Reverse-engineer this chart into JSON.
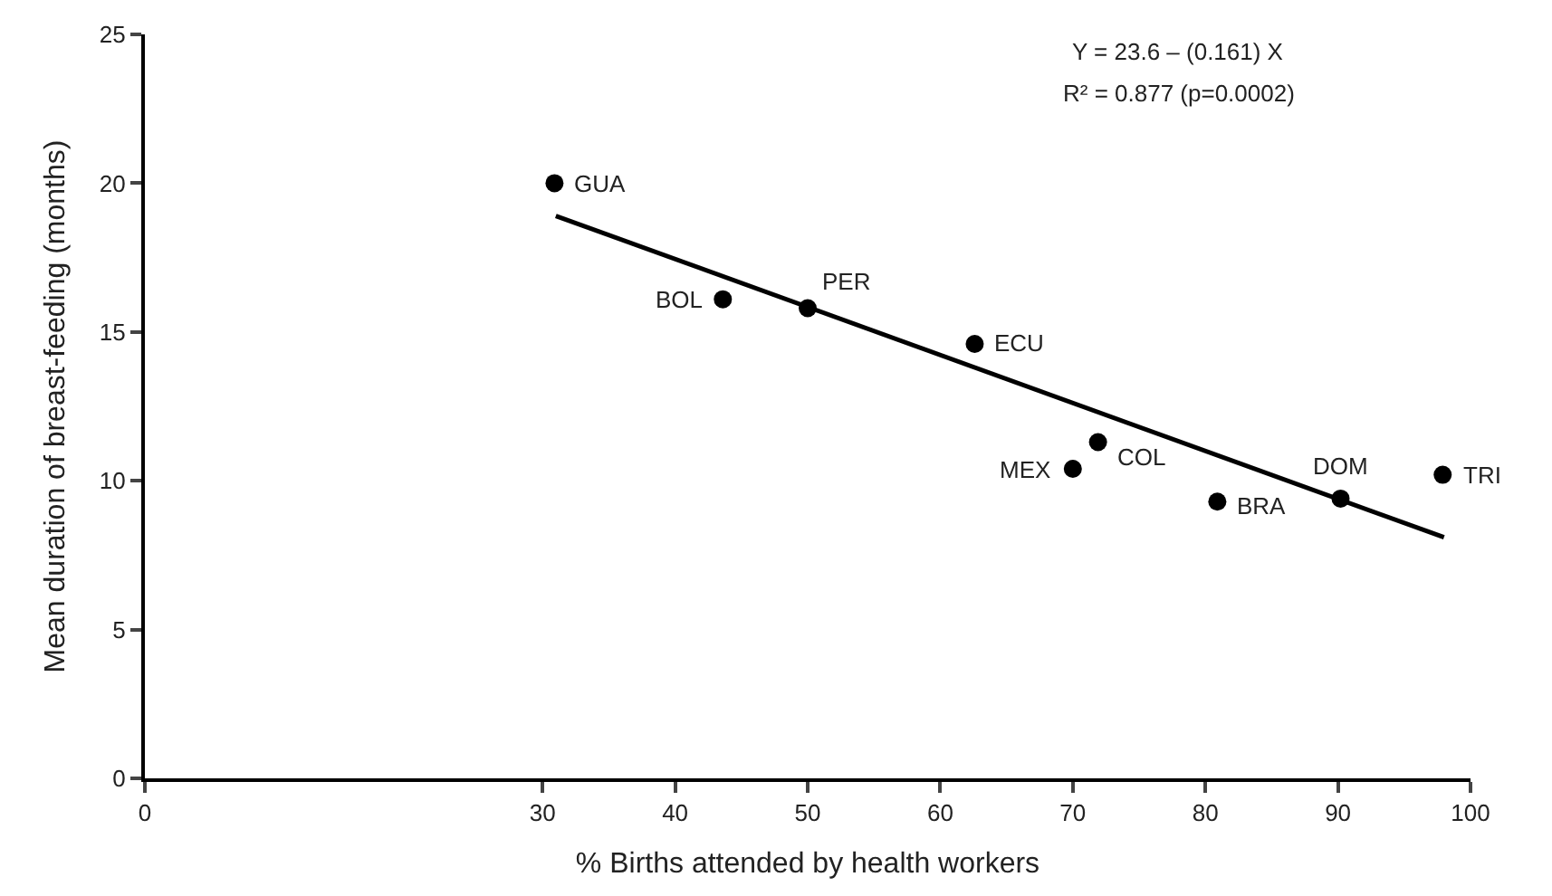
{
  "chart_data": {
    "type": "scatter",
    "xlabel": "% Births attended by health workers",
    "ylabel": "Mean duration of breast-feeding (months)",
    "x": [
      30.9,
      43.6,
      50.0,
      62.6,
      70.0,
      71.9,
      80.9,
      90.2,
      97.9
    ],
    "series": [
      {
        "color": "#000000",
        "values": [
          20.0,
          16.1,
          15.8,
          14.6,
          10.4,
          11.3,
          9.3,
          9.4,
          10.2
        ],
        "marker": "circle"
      },
      {
        "type": "line",
        "color": "#000000",
        "x": [
          31,
          98
        ],
        "values": [
          18.9,
          8.1
        ],
        "line_style": "solid"
      }
    ],
    "xlim": [
      0,
      100
    ],
    "xticks": [
      0,
      30,
      40,
      50,
      60,
      70,
      80,
      90,
      100
    ],
    "ylim": [
      0,
      25
    ],
    "yticks": [
      0,
      5,
      10,
      15,
      20,
      25
    ],
    "annotations": [
      "Y = 23.6 – (0.161) X",
      "R² = 0.877 (p=0.0002)",
      {
        "text": "GUA",
        "x": 30.9,
        "y": 20.0
      },
      {
        "text": "BOL",
        "x": 43.6,
        "y": 16.1
      },
      {
        "text": "PER",
        "x": 50.0,
        "y": 15.8
      },
      {
        "text": "ECU",
        "x": 62.6,
        "y": 14.6
      },
      {
        "text": "MEX",
        "x": 70.0,
        "y": 10.4
      },
      {
        "text": "COL",
        "x": 71.9,
        "y": 11.3
      },
      {
        "text": "BRA",
        "x": 80.9,
        "y": 9.3
      },
      {
        "text": "DOM",
        "x": 90.2,
        "y": 9.4
      },
      {
        "text": "TRI",
        "x": 97.9,
        "y": 10.2
      }
    ]
  }
}
